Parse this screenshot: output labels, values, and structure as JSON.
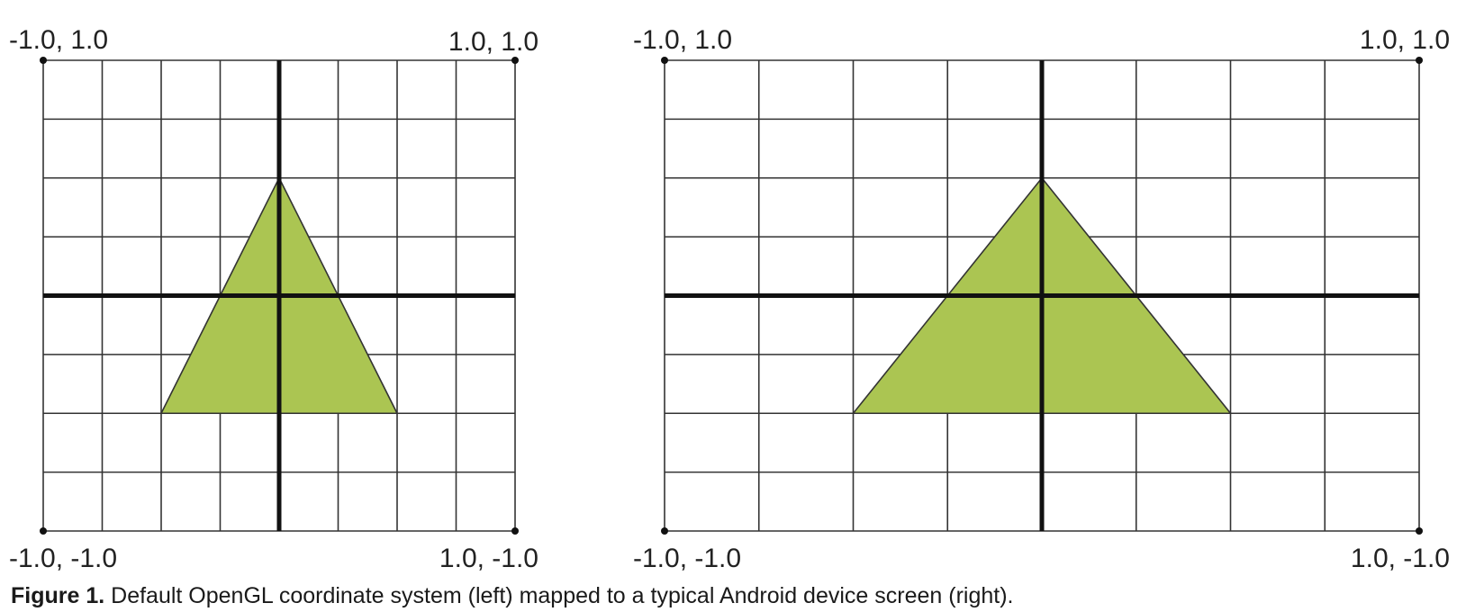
{
  "panels": {
    "left": {
      "corners": {
        "top_left": "-1.0, 1.0",
        "top_right": "1.0, 1.0",
        "bottom_left": "-1.0, -1.0",
        "bottom_right": "1.0, -1.0"
      },
      "triangle_vertices": [
        [
          -0.5,
          -0.5
        ],
        [
          0.0,
          0.5
        ],
        [
          0.5,
          -0.5
        ]
      ]
    },
    "right": {
      "corners": {
        "top_left": "-1.0, 1.0",
        "top_right": "1.0, 1.0",
        "bottom_left": "-1.0, -1.0",
        "bottom_right": "1.0, -1.0"
      },
      "triangle_vertices": [
        [
          -0.5,
          -0.5
        ],
        [
          0.0,
          0.5
        ],
        [
          0.5,
          -0.5
        ]
      ]
    }
  },
  "colors": {
    "triangle_fill": "#abc552",
    "grid_line": "#333333",
    "axis_line": "#111111"
  },
  "caption": {
    "label": "Figure 1.",
    "text": " Default OpenGL coordinate system (left) mapped to a typical Android device screen (right)."
  }
}
